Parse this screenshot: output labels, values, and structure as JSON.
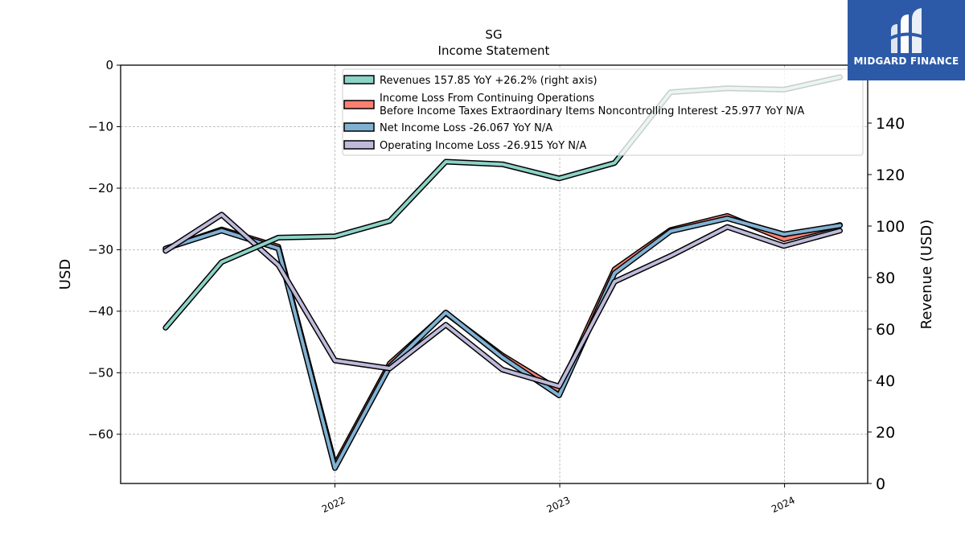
{
  "brand": {
    "name": "MIDGARD FINANCE",
    "bg_color": "#2d5aa8"
  },
  "chart_data": {
    "type": "line",
    "title": "SG",
    "subtitle": "Income Statement",
    "ylabel": "USD",
    "y2label": "Revenue (USD)",
    "ylim": [
      -68,
      0
    ],
    "y2lim": [
      0,
      162.5
    ],
    "yticks": [
      0,
      -10,
      -20,
      -30,
      -40,
      -50,
      -60
    ],
    "y2ticks": [
      0,
      20,
      40,
      60,
      80,
      100,
      120,
      140
    ],
    "xlim": [
      "2021-01-18",
      "2024-05-15"
    ],
    "xticks": [
      {
        "date": "2022-01-01",
        "label": "2022"
      },
      {
        "date": "2023-01-01",
        "label": "2023"
      },
      {
        "date": "2024-01-01",
        "label": "2024"
      }
    ],
    "grid": true,
    "legend_position": "top-right",
    "series": [
      {
        "name": "Revenues  157.85 YoY +26.2% (right axis)",
        "axis": "right",
        "color": "#8dd3c7",
        "points": [
          [
            "2021-04-01",
            60.5
          ],
          [
            "2021-07-01",
            86.0
          ],
          [
            "2021-10-01",
            95.5
          ],
          [
            "2022-01-01",
            96.0
          ],
          [
            "2022-03-31",
            102.0
          ],
          [
            "2022-06-30",
            125.0
          ],
          [
            "2022-09-30",
            124.0
          ],
          [
            "2022-12-31",
            118.5
          ],
          [
            "2023-03-31",
            124.5
          ],
          [
            "2023-06-30",
            152.0
          ],
          [
            "2023-09-30",
            153.5
          ],
          [
            "2023-12-31",
            153.0
          ],
          [
            "2024-03-31",
            157.85
          ]
        ]
      },
      {
        "name": "Income Loss From Continuing Operations\nBefore Income Taxes Extraordinary Items Noncontrolling Interest  -25.977 YoY N/A",
        "axis": "left",
        "color": "#fb8072",
        "points": [
          [
            "2021-04-01",
            -29.8
          ],
          [
            "2021-07-01",
            -26.7
          ],
          [
            "2021-10-01",
            -29.5
          ],
          [
            "2022-01-01",
            -65.0
          ],
          [
            "2022-03-31",
            -48.5
          ],
          [
            "2022-06-30",
            -40.3
          ],
          [
            "2022-09-30",
            -47.2
          ],
          [
            "2022-12-31",
            -52.8
          ],
          [
            "2023-03-31",
            -33.2
          ],
          [
            "2023-06-30",
            -26.8
          ],
          [
            "2023-09-30",
            -24.5
          ],
          [
            "2023-12-31",
            -28.3
          ],
          [
            "2024-03-31",
            -25.977
          ]
        ]
      },
      {
        "name": "Net Income Loss  -26.067 YoY N/A",
        "axis": "left",
        "color": "#80b1d3",
        "points": [
          [
            "2021-04-01",
            -29.8
          ],
          [
            "2021-07-01",
            -26.9
          ],
          [
            "2021-10-01",
            -29.8
          ],
          [
            "2022-01-01",
            -65.5
          ],
          [
            "2022-03-31",
            -49.0
          ],
          [
            "2022-06-30",
            -40.2
          ],
          [
            "2022-09-30",
            -47.5
          ],
          [
            "2022-12-31",
            -53.7
          ],
          [
            "2023-03-31",
            -33.8
          ],
          [
            "2023-06-30",
            -27.0
          ],
          [
            "2023-09-30",
            -24.9
          ],
          [
            "2023-12-31",
            -27.5
          ],
          [
            "2024-03-31",
            -26.067
          ]
        ]
      },
      {
        "name": "Operating Income Loss  -26.915 YoY N/A",
        "axis": "left",
        "color": "#bebada",
        "points": [
          [
            "2021-04-01",
            -30.2
          ],
          [
            "2021-07-01",
            -24.3
          ],
          [
            "2021-10-01",
            -32.5
          ],
          [
            "2022-01-01",
            -48.0
          ],
          [
            "2022-03-31",
            -49.3
          ],
          [
            "2022-06-30",
            -42.2
          ],
          [
            "2022-09-30",
            -49.5
          ],
          [
            "2022-12-31",
            -52.2
          ],
          [
            "2023-03-31",
            -35.2
          ],
          [
            "2023-06-30",
            -31.0
          ],
          [
            "2023-09-30",
            -26.3
          ],
          [
            "2023-12-31",
            -29.4
          ],
          [
            "2024-03-31",
            -26.915
          ]
        ]
      }
    ]
  }
}
